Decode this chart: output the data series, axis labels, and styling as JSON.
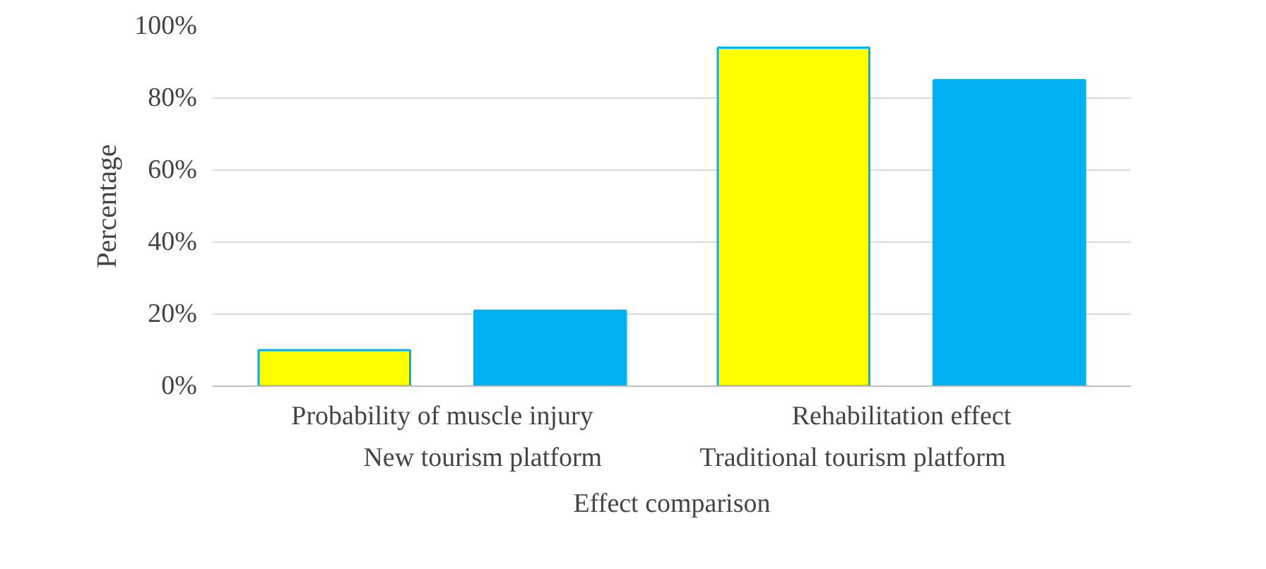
{
  "chart_data": {
    "type": "bar",
    "xlabel": "Effect comparison",
    "ylabel": "Percentage",
    "categories": [
      "Probability of muscle injury",
      "Rehabilitation effect"
    ],
    "series": [
      {
        "name": "New tourism platform",
        "color": "#ffff00",
        "values": [
          10,
          94
        ]
      },
      {
        "name": "Traditional tourism platform",
        "color": "#00b0f0",
        "values": [
          21,
          85
        ]
      }
    ],
    "ylim": [
      0,
      100
    ],
    "yticks": [
      {
        "value": 0,
        "label": "0%"
      },
      {
        "value": 20,
        "label": "20%"
      },
      {
        "value": 40,
        "label": "40%"
      },
      {
        "value": 60,
        "label": "60%"
      },
      {
        "value": 80,
        "label": "80%"
      },
      {
        "value": 100,
        "label": "100%"
      }
    ],
    "grid": "y",
    "legend": "bottom"
  }
}
